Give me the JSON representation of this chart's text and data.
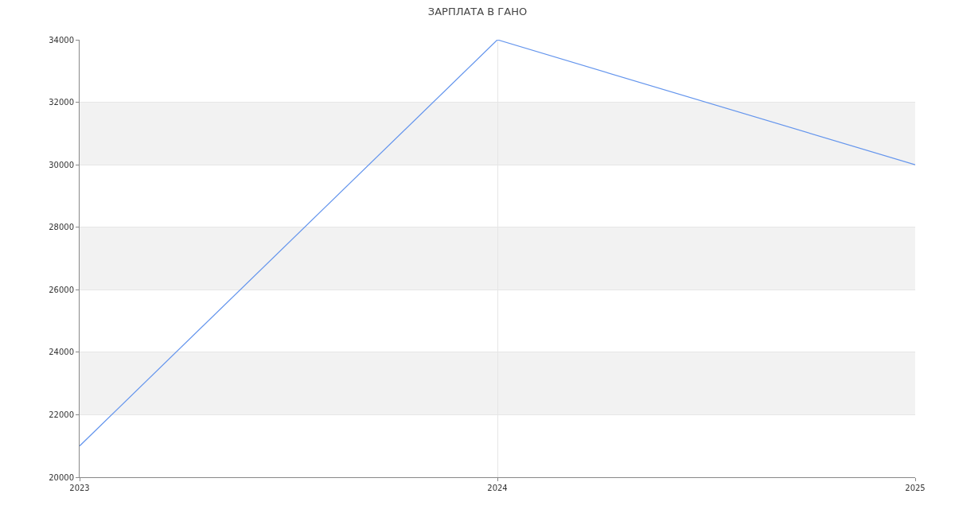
{
  "chart_data": {
    "type": "line",
    "title": "ЗАРПЛАТА В ГАНО",
    "x": [
      2023,
      2024,
      2025
    ],
    "series": [
      {
        "color": "#6495ed",
        "values": [
          21000,
          34000,
          30000
        ]
      }
    ],
    "xlim": [
      2023,
      2025
    ],
    "xticks": [
      2023,
      2024,
      2025
    ],
    "ylim": [
      20000,
      34000
    ],
    "yticks": [
      20000,
      22000,
      24000,
      26000,
      28000,
      30000,
      32000,
      34000
    ],
    "bands": [
      {
        "axis": "y",
        "from": 22000,
        "to": 24000,
        "color": "#f2f2f2"
      },
      {
        "axis": "y",
        "from": 26000,
        "to": 28000,
        "color": "#f2f2f2"
      },
      {
        "axis": "y",
        "from": 30000,
        "to": 32000,
        "color": "#f2f2f2"
      }
    ],
    "grid": true,
    "marker": "none",
    "line_style": "solid"
  }
}
